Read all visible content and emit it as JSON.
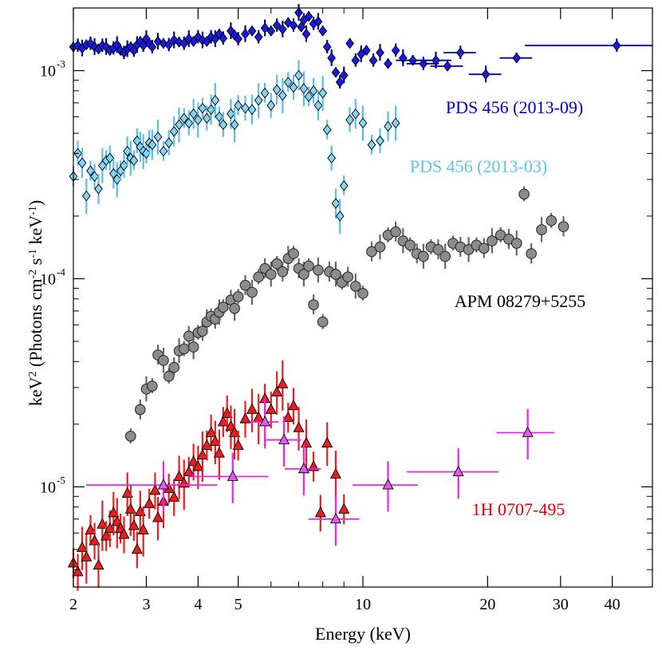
{
  "chart_data": {
    "type": "scatter",
    "title": "",
    "xlabel": "Energy (keV)",
    "ylabel": "keV² (Photons cm⁻² s⁻¹ keV⁻¹)",
    "x_scale": "log",
    "y_scale": "log",
    "xlim": [
      2,
      50
    ],
    "ylim": [
      3.3e-06,
      0.002
    ],
    "x_ticks": [
      2,
      3,
      4,
      5,
      10,
      20,
      30,
      40
    ],
    "y_ticks": [
      1e-05,
      0.0001,
      0.001
    ],
    "y_tick_labels": [
      "10",
      "10",
      "10"
    ],
    "y_tick_exponents": [
      "-5",
      "-4",
      "-3"
    ],
    "series": [
      {
        "name": "PDS 456 (2013-09)",
        "label_color": "#0000c8",
        "marker": "diamond",
        "fill": "#1a1adf",
        "errcolor": "#0000aa",
        "points": [
          [
            2.0,
            0.0013
          ],
          [
            2.05,
            0.00132
          ],
          [
            2.1,
            0.00128
          ],
          [
            2.15,
            0.00133
          ],
          [
            2.2,
            0.00135
          ],
          [
            2.25,
            0.0013
          ],
          [
            2.3,
            0.00127
          ],
          [
            2.35,
            0.00132
          ],
          [
            2.4,
            0.0013
          ],
          [
            2.45,
            0.00125
          ],
          [
            2.5,
            0.00128
          ],
          [
            2.55,
            0.00133
          ],
          [
            2.6,
            0.00125
          ],
          [
            2.65,
            0.00122
          ],
          [
            2.7,
            0.00127
          ],
          [
            2.75,
            0.0013
          ],
          [
            2.8,
            0.00125
          ],
          [
            2.85,
            0.00133
          ],
          [
            2.9,
            0.00138
          ],
          [
            2.95,
            0.00132
          ],
          [
            3.0,
            0.00142
          ],
          [
            3.05,
            0.00135
          ],
          [
            3.1,
            0.0013
          ],
          [
            3.2,
            0.00138
          ],
          [
            3.3,
            0.00135
          ],
          [
            3.4,
            0.00133
          ],
          [
            3.5,
            0.0014
          ],
          [
            3.6,
            0.00137
          ],
          [
            3.7,
            0.00135
          ],
          [
            3.8,
            0.00142
          ],
          [
            3.9,
            0.00138
          ],
          [
            4.0,
            0.00145
          ],
          [
            4.1,
            0.0014
          ],
          [
            4.2,
            0.00138
          ],
          [
            4.3,
            0.00145
          ],
          [
            4.4,
            0.00142
          ],
          [
            4.5,
            0.0015
          ],
          [
            4.6,
            0.00143
          ],
          [
            4.8,
            0.00155
          ],
          [
            4.9,
            0.00148
          ],
          [
            5.0,
            0.00142
          ],
          [
            5.2,
            0.0015
          ],
          [
            5.4,
            0.00155
          ],
          [
            5.6,
            0.00145
          ],
          [
            5.8,
            0.0016
          ],
          [
            6.0,
            0.00155
          ],
          [
            6.2,
            0.00165
          ],
          [
            6.4,
            0.00158
          ],
          [
            6.6,
            0.0017
          ],
          [
            6.8,
            0.00165
          ],
          [
            7.0,
            0.0019
          ],
          [
            7.1,
            0.00162
          ],
          [
            7.2,
            0.00175
          ],
          [
            7.3,
            0.0015
          ],
          [
            7.4,
            0.00182
          ],
          [
            7.6,
            0.00168
          ],
          [
            7.8,
            0.00172
          ],
          [
            8.0,
            0.00155
          ],
          [
            8.2,
            0.0013
          ],
          [
            8.4,
            0.00115
          ],
          [
            8.6,
            0.00098
          ],
          [
            8.8,
            0.00088
          ],
          [
            9.0,
            0.00095
          ],
          [
            9.3,
            0.00135
          ],
          [
            9.6,
            0.00112
          ],
          [
            9.9,
            0.0012
          ],
          [
            10.2,
            0.00125
          ],
          [
            10.6,
            0.00112
          ],
          [
            11.0,
            0.00122
          ],
          [
            11.5,
            0.00108
          ],
          [
            12.0,
            0.00125
          ],
          [
            12.5,
            0.00115
          ],
          [
            13.2,
            0.00112
          ],
          [
            14.0,
            0.00108
          ],
          [
            15.0,
            0.00112
          ],
          [
            16.0,
            0.00105
          ],
          [
            17.2,
            0.00122
          ],
          [
            19.8,
            0.00096
          ],
          [
            23.5,
            0.00115
          ],
          [
            41.0,
            0.00132
          ]
        ]
      },
      {
        "name": "PDS 456 (2013-03)",
        "label_color": "#5bc2ea",
        "marker": "diamond",
        "fill": "#86d3f2",
        "errcolor": "#56bfef",
        "points": [
          [
            2.0,
            0.00031
          ],
          [
            2.05,
            0.0004
          ],
          [
            2.1,
            0.00036
          ],
          [
            2.15,
            0.00025
          ],
          [
            2.2,
            0.00033
          ],
          [
            2.25,
            0.00031
          ],
          [
            2.3,
            0.00027
          ],
          [
            2.35,
            0.00035
          ],
          [
            2.4,
            0.00037
          ],
          [
            2.45,
            0.00038
          ],
          [
            2.5,
            0.00032
          ],
          [
            2.55,
            0.0003
          ],
          [
            2.6,
            0.00033
          ],
          [
            2.65,
            0.00035
          ],
          [
            2.7,
            0.00041
          ],
          [
            2.75,
            0.00038
          ],
          [
            2.8,
            0.00037
          ],
          [
            2.85,
            0.00046
          ],
          [
            2.9,
            0.00043
          ],
          [
            2.95,
            0.00041
          ],
          [
            3.0,
            0.0004
          ],
          [
            3.05,
            0.00045
          ],
          [
            3.1,
            0.00044
          ],
          [
            3.2,
            0.00048
          ],
          [
            3.3,
            0.00041
          ],
          [
            3.4,
            0.00045
          ],
          [
            3.5,
            0.00051
          ],
          [
            3.6,
            0.00055
          ],
          [
            3.7,
            0.00059
          ],
          [
            3.8,
            0.00056
          ],
          [
            3.9,
            0.00062
          ],
          [
            4.0,
            0.00058
          ],
          [
            4.1,
            0.00066
          ],
          [
            4.2,
            0.00059
          ],
          [
            4.3,
            0.00065
          ],
          [
            4.4,
            0.00072
          ],
          [
            4.5,
            0.0006
          ],
          [
            4.6,
            0.00055
          ],
          [
            4.8,
            0.00062
          ],
          [
            4.9,
            0.00055
          ],
          [
            5.0,
            0.00068
          ],
          [
            5.2,
            0.00066
          ],
          [
            5.4,
            0.00065
          ],
          [
            5.6,
            0.00072
          ],
          [
            5.8,
            0.00078
          ],
          [
            6.0,
            0.00068
          ],
          [
            6.2,
            0.00081
          ],
          [
            6.4,
            0.00076
          ],
          [
            6.6,
            0.00088
          ],
          [
            6.8,
            0.00083
          ],
          [
            7.0,
            0.00095
          ],
          [
            7.2,
            0.00082
          ],
          [
            7.4,
            0.00075
          ],
          [
            7.6,
            0.0008
          ],
          [
            7.8,
            0.00068
          ],
          [
            8.0,
            0.00078
          ],
          [
            8.2,
            0.00052
          ],
          [
            8.4,
            0.00038
          ],
          [
            8.6,
            0.00023
          ],
          [
            8.8,
            0.0002
          ],
          [
            9.0,
            0.00028
          ],
          [
            9.3,
            0.00058
          ],
          [
            9.6,
            0.00062
          ],
          [
            10.0,
            0.00056
          ],
          [
            10.5,
            0.00044
          ],
          [
            11.0,
            0.00046
          ],
          [
            11.5,
            0.00054
          ],
          [
            12.0,
            0.00056
          ]
        ]
      },
      {
        "name": "APM 08279+5255",
        "label_color": "#000000",
        "marker": "circle",
        "fill": "#8c8c8c",
        "errcolor": "#666666",
        "points": [
          [
            2.75,
            1.75e-05
          ],
          [
            2.9,
            2.35e-05
          ],
          [
            3.0,
            2.95e-05
          ],
          [
            3.1,
            3.05e-05
          ],
          [
            3.2,
            4.3e-05
          ],
          [
            3.3,
            4.05e-05
          ],
          [
            3.4,
            3.4e-05
          ],
          [
            3.5,
            3.75e-05
          ],
          [
            3.6,
            4.5e-05
          ],
          [
            3.7,
            4.6e-05
          ],
          [
            3.8,
            5.3e-05
          ],
          [
            3.9,
            4.7e-05
          ],
          [
            4.0,
            5.5e-05
          ],
          [
            4.1,
            5.6e-05
          ],
          [
            4.2,
            6.2e-05
          ],
          [
            4.3,
            6.6e-05
          ],
          [
            4.4,
            6.4e-05
          ],
          [
            4.5,
            6.9e-05
          ],
          [
            4.6,
            7.3e-05
          ],
          [
            4.8,
            7.9e-05
          ],
          [
            4.9,
            7.2e-05
          ],
          [
            5.0,
            8.2e-05
          ],
          [
            5.2,
            9.3e-05
          ],
          [
            5.4,
            8.6e-05
          ],
          [
            5.6,
            0.000102
          ],
          [
            5.8,
            0.000112
          ],
          [
            6.0,
            0.000105
          ],
          [
            6.2,
            0.000118
          ],
          [
            6.4,
            0.000108
          ],
          [
            6.6,
            0.000125
          ],
          [
            6.8,
            0.000132
          ],
          [
            7.0,
            0.000112
          ],
          [
            7.2,
            0.000105
          ],
          [
            7.4,
            0.000115
          ],
          [
            7.6,
            7.5e-05
          ],
          [
            7.8,
            0.00011
          ],
          [
            8.0,
            6.2e-05
          ],
          [
            8.3,
            0.000108
          ],
          [
            8.6,
            0.000105
          ],
          [
            8.9,
            9.6e-05
          ],
          [
            9.2,
            0.000102
          ],
          [
            9.6,
            9.2e-05
          ],
          [
            10.0,
            8.5e-05
          ],
          [
            10.5,
            0.000135
          ],
          [
            11.0,
            0.000142
          ],
          [
            11.5,
            0.000162
          ],
          [
            12.0,
            0.000168
          ],
          [
            12.5,
            0.000152
          ],
          [
            13.0,
            0.000145
          ],
          [
            13.5,
            0.000132
          ],
          [
            14.0,
            0.000128
          ],
          [
            14.6,
            0.000142
          ],
          [
            15.2,
            0.000138
          ],
          [
            15.8,
            0.000128
          ],
          [
            16.5,
            0.000148
          ],
          [
            17.2,
            0.000142
          ],
          [
            18.0,
            0.000138
          ],
          [
            18.8,
            0.000145
          ],
          [
            19.6,
            0.00014
          ],
          [
            20.5,
            0.000152
          ],
          [
            21.5,
            0.000162
          ],
          [
            22.5,
            0.000155
          ],
          [
            23.5,
            0.000148
          ],
          [
            24.5,
            0.000255
          ],
          [
            25.5,
            0.000132
          ],
          [
            27.0,
            0.000172
          ],
          [
            28.5,
            0.00019
          ],
          [
            30.5,
            0.000178
          ]
        ]
      },
      {
        "name": "1H 0707-495",
        "label_color": "#e20000",
        "marker": "triangle",
        "fill": "#e62020",
        "errcolor": "#e62020",
        "points": [
          [
            2.0,
            4.3e-06
          ],
          [
            2.05,
            3.9e-06
          ],
          [
            2.1,
            5.1e-06
          ],
          [
            2.15,
            4.6e-06
          ],
          [
            2.2,
            6.2e-06
          ],
          [
            2.25,
            5.5e-06
          ],
          [
            2.3,
            4.2e-06
          ],
          [
            2.35,
            6.6e-06
          ],
          [
            2.4,
            5.8e-06
          ],
          [
            2.45,
            6.3e-06
          ],
          [
            2.5,
            7.5e-06
          ],
          [
            2.55,
            6.8e-06
          ],
          [
            2.6,
            6.3e-06
          ],
          [
            2.65,
            5.9e-06
          ],
          [
            2.7,
            9.3e-06
          ],
          [
            2.75,
            7.8e-06
          ],
          [
            2.8,
            6.5e-06
          ],
          [
            2.85,
            5e-06
          ],
          [
            2.9,
            7.6e-06
          ],
          [
            2.95,
            6.2e-06
          ],
          [
            3.05,
            8.3e-06
          ],
          [
            3.15,
            9.6e-06
          ],
          [
            3.2,
            7.1e-06
          ],
          [
            3.3,
            8.5e-06
          ],
          [
            3.4,
            9.8e-06
          ],
          [
            3.5,
            8.9e-06
          ],
          [
            3.6,
            1.12e-05
          ],
          [
            3.7,
            1.04e-05
          ],
          [
            3.8,
            1.18e-05
          ],
          [
            3.9,
            1.32e-05
          ],
          [
            4.0,
            1.25e-05
          ],
          [
            4.1,
            1.42e-05
          ],
          [
            4.2,
            1.58e-05
          ],
          [
            4.3,
            1.82e-05
          ],
          [
            4.4,
            1.65e-05
          ],
          [
            4.5,
            1.45e-05
          ],
          [
            4.6,
            2.05e-05
          ],
          [
            4.7,
            2.25e-05
          ],
          [
            4.8,
            1.95e-05
          ],
          [
            4.9,
            1.82e-05
          ],
          [
            5.0,
            1.58e-05
          ],
          [
            5.2,
            2.12e-05
          ],
          [
            5.4,
            2.35e-05
          ],
          [
            5.6,
            2.15e-05
          ],
          [
            5.8,
            2.65e-05
          ],
          [
            6.0,
            2.35e-05
          ],
          [
            6.2,
            2.85e-05
          ],
          [
            6.4,
            3.12e-05
          ],
          [
            6.6,
            2.15e-05
          ],
          [
            6.8,
            2.45e-05
          ],
          [
            7.0,
            1.92e-05
          ],
          [
            7.3,
            1.62e-05
          ],
          [
            7.6,
            1.25e-05
          ],
          [
            7.9,
            7.5e-06
          ],
          [
            8.2,
            1.62e-05
          ],
          [
            8.6,
            1.15e-05
          ],
          [
            9.0,
            7.8e-06
          ]
        ]
      },
      {
        "name": "",
        "label_color": "",
        "marker": "triangle",
        "fill": "#e25ae6",
        "errcolor": "#ee22ee",
        "points": [
          [
            3.3,
            1.02e-05
          ],
          [
            4.85,
            1.12e-05
          ],
          [
            5.8,
            2.05e-05
          ],
          [
            6.45,
            1.68e-05
          ],
          [
            7.2,
            1.22e-05
          ],
          [
            8.6,
            7e-06
          ],
          [
            11.5,
            1.02e-05
          ],
          [
            17.0,
            1.18e-05
          ],
          [
            25.0,
            1.82e-05
          ]
        ]
      }
    ]
  }
}
